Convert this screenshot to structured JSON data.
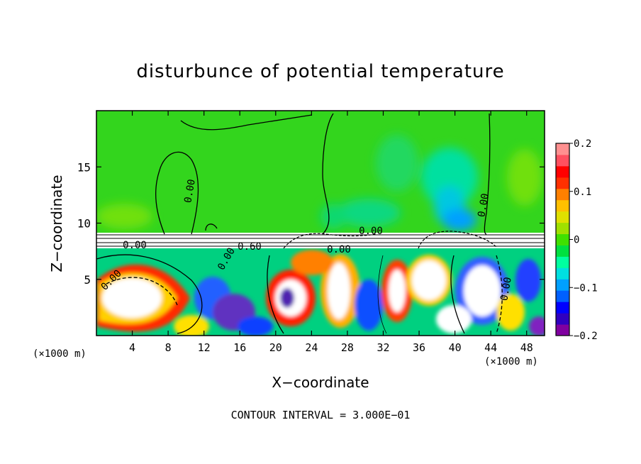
{
  "chart_data": {
    "type": "heatmap",
    "title": "disturbunce of potential temperature",
    "xlabel": "X−coordinate",
    "ylabel": "Z−coordinate",
    "x_unit": "(×1000 m)",
    "xlim": [
      0,
      50
    ],
    "ylim": [
      0,
      20
    ],
    "x_ticks": [
      4,
      8,
      12,
      16,
      20,
      24,
      28,
      32,
      36,
      40,
      44,
      48
    ],
    "y_ticks": [
      5,
      10,
      15
    ],
    "colorbar": {
      "range": [
        -0.2,
        0.2
      ],
      "tick_values": [
        0.2,
        0.1,
        0,
        -0.1,
        -0.2
      ],
      "tick_labels": [
        "0.2",
        "0.1",
        "0",
        "−0.1",
        "−0.2"
      ],
      "colors": [
        "#8000a0",
        "#3000c0",
        "#0000ff",
        "#0060ff",
        "#00a0ff",
        "#00e0e0",
        "#00ffa0",
        "#00e040",
        "#40e000",
        "#a0e000",
        "#e0e000",
        "#ffc000",
        "#ff8000",
        "#ff3000",
        "#ff0000",
        "#ff5060",
        "#ff9090"
      ]
    },
    "contour_labels": [
      "0.00",
      "0.00",
      "0.00",
      "0.00",
      "0.00",
      "0.00",
      "0.00",
      "0.00",
      "0.60"
    ],
    "contour_interval_text": "CONTOUR INTERVAL =  3.000E−01"
  }
}
